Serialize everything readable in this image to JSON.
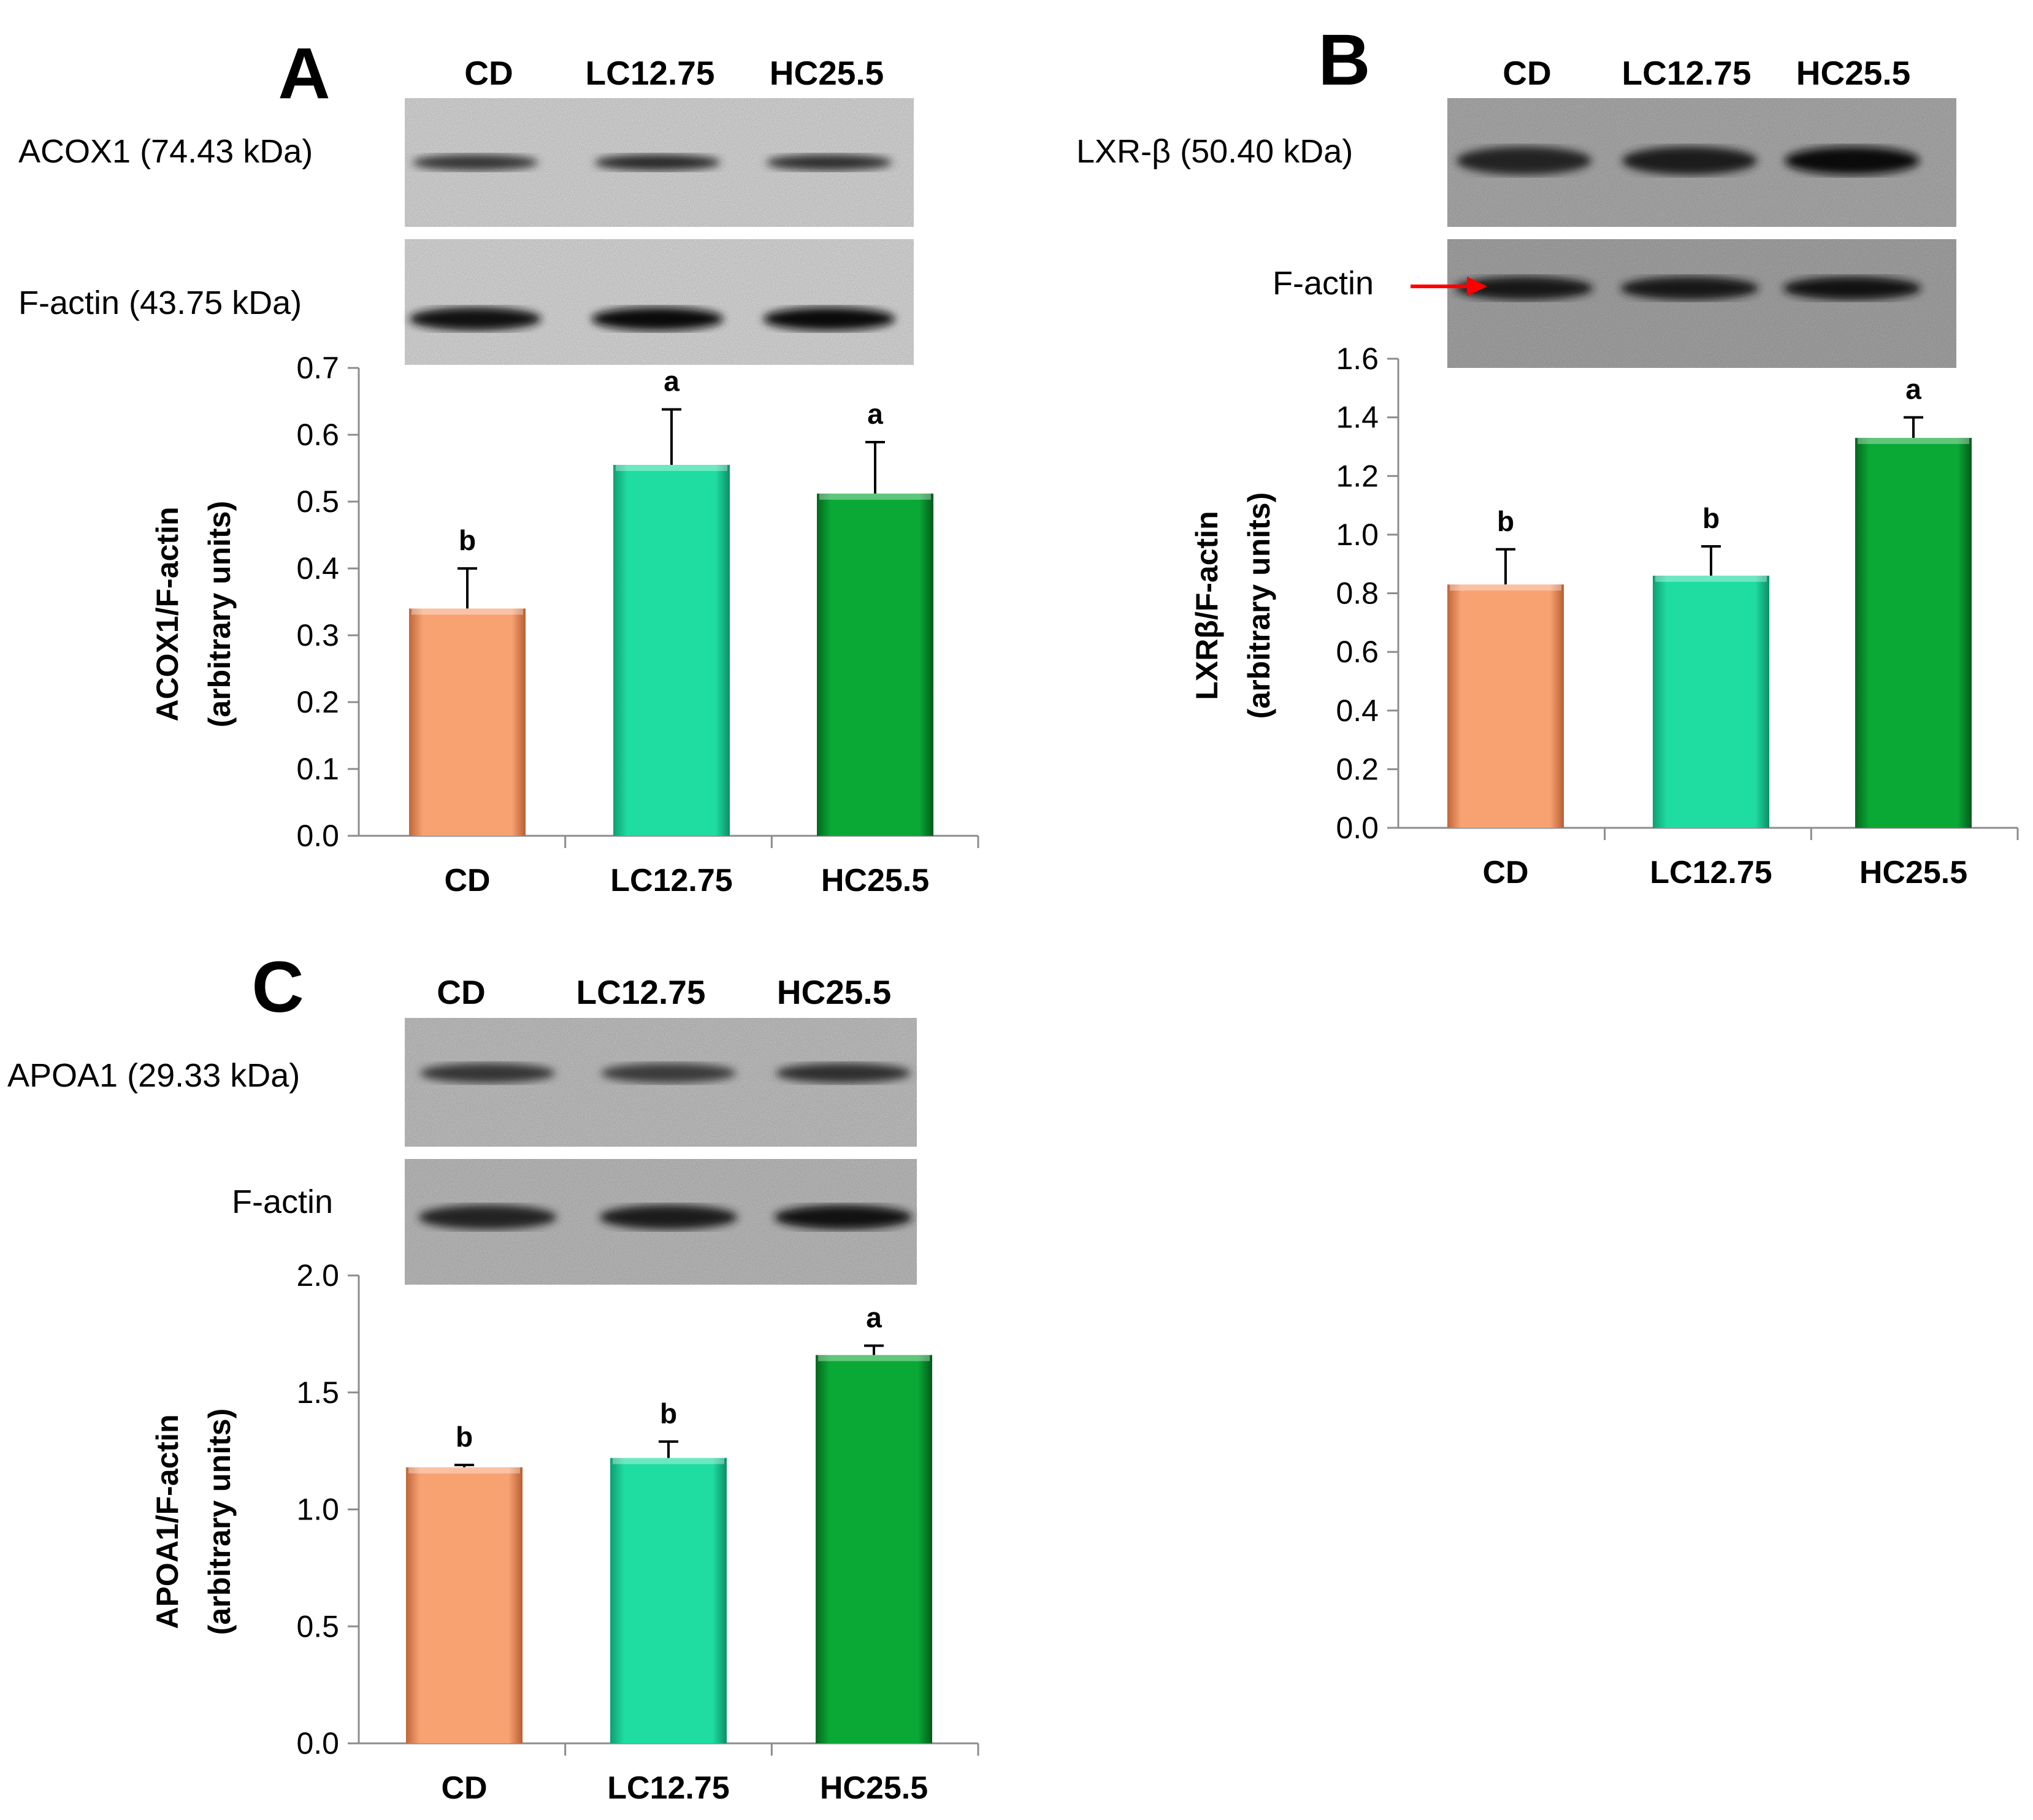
{
  "panels": [
    {
      "letter": "A",
      "lanes": [
        "CD",
        "LC12.75",
        "HC25.5"
      ],
      "blots": [
        {
          "label": "ACOX1 (74.43 kDa)",
          "intensity": [
            0.55,
            0.65,
            0.6
          ],
          "bg": "#ececec"
        },
        {
          "label": "F-actin (43.75 kDa)",
          "intensity": [
            0.85,
            0.9,
            0.95
          ],
          "bg": "#eeeeee"
        }
      ],
      "chart_data": {
        "type": "bar",
        "categories": [
          "CD",
          "LC12.75",
          "HC25.5"
        ],
        "values": [
          0.34,
          0.555,
          0.512
        ],
        "errors": [
          0.06,
          0.083,
          0.077
        ],
        "significance": [
          "b",
          "a",
          "a"
        ],
        "ylabel_line1": "ACOX1/F-actin",
        "ylabel_line2": "(arbitrary units)",
        "ylim": [
          0,
          0.7
        ],
        "yticks": [
          "0.0",
          "0.1",
          "0.2",
          "0.3",
          "0.4",
          "0.5",
          "0.6",
          "0.7"
        ]
      }
    },
    {
      "letter": "B",
      "lanes": [
        "CD",
        "LC12.75",
        "HC25.5"
      ],
      "blots": [
        {
          "label": "LXR-β (50.40 kDa)",
          "intensity": [
            0.7,
            0.75,
            0.9
          ],
          "bg": "#bdbdbd"
        },
        {
          "label": "F-actin",
          "intensity": [
            0.8,
            0.8,
            0.85
          ],
          "bg": "#b5b5b5",
          "arrow": true
        }
      ],
      "chart_data": {
        "type": "bar",
        "categories": [
          "CD",
          "LC12.75",
          "HC25.5"
        ],
        "values": [
          0.83,
          0.86,
          1.33
        ],
        "errors": [
          0.12,
          0.1,
          0.07
        ],
        "significance": [
          "b",
          "b",
          "a"
        ],
        "ylabel_line1": "LXRβ/F-actin",
        "ylabel_line2": "(arbitrary units)",
        "ylim": [
          0,
          1.6
        ],
        "yticks": [
          "0.0",
          "0.2",
          "0.4",
          "0.6",
          "0.8",
          "1.0",
          "1.2",
          "1.4",
          "1.6"
        ]
      }
    },
    {
      "letter": "C",
      "lanes": [
        "CD",
        "LC12.75",
        "HC25.5"
      ],
      "blots": [
        {
          "label": "APOA1 (29.33 kDa)",
          "intensity": [
            0.55,
            0.5,
            0.6
          ],
          "bg": "#d4d4d4"
        },
        {
          "label": "F-actin",
          "intensity": [
            0.7,
            0.75,
            0.85
          ],
          "bg": "#cfcfcf"
        }
      ],
      "chart_data": {
        "type": "bar",
        "categories": [
          "CD",
          "LC12.75",
          "HC25.5"
        ],
        "values": [
          1.18,
          1.22,
          1.66
        ],
        "errors": [
          0.01,
          0.07,
          0.04
        ],
        "significance": [
          "b",
          "b",
          "a"
        ],
        "ylabel_line1": "APOA1/F-actin",
        "ylabel_line2": "(arbitrary units)",
        "ylim": [
          0,
          2.0
        ],
        "yticks": [
          "0.0",
          "0.5",
          "1.0",
          "1.5",
          "2.0"
        ]
      }
    }
  ],
  "colors": {
    "bar_CD": "#f8a272",
    "bar_LC12.75": "#1fdca0",
    "bar_HC25.5": "#0aa835",
    "axis": "#8c8c8c",
    "text": "#000000",
    "arrow": "#ff0000"
  }
}
